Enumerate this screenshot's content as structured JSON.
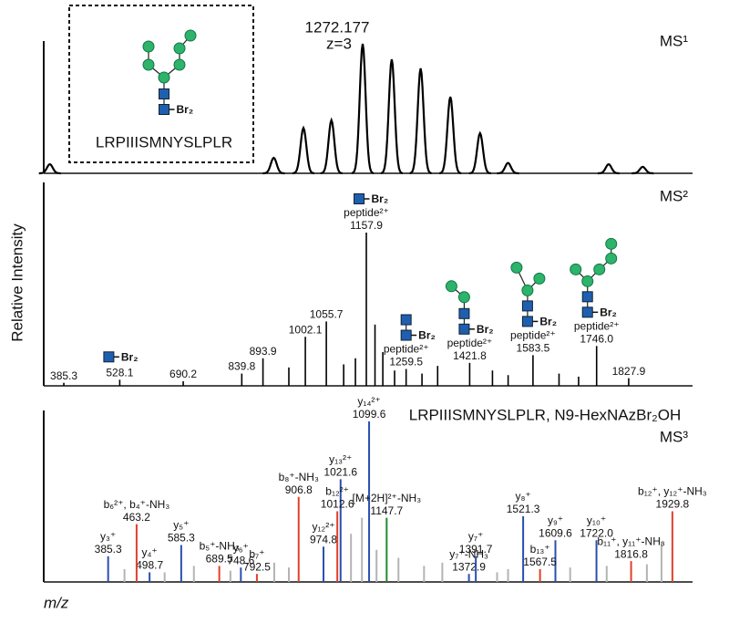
{
  "y_axis_label": "Relative Intensity",
  "x_axis_label": "m/z",
  "chart_data": [
    {
      "type": "profile",
      "title": "MS¹",
      "peak_label": "1272.177",
      "charge_label": "z=3",
      "inset": {
        "modification": "Br₂",
        "peptide": "LRPIIISMNYSLPLR"
      },
      "color": "#000000",
      "x": [
        1268.6,
        1271.16,
        1271.5,
        1271.82,
        1272.177,
        1272.51,
        1272.84,
        1273.18,
        1273.52,
        1273.84,
        1274.99,
        1275.38
      ],
      "values": [
        7,
        12,
        35,
        41,
        100,
        88,
        81,
        59,
        31,
        8,
        7,
        5
      ],
      "xlim": [
        1268.53,
        1275.95
      ],
      "ylim": [
        0,
        100
      ]
    },
    {
      "type": "stick",
      "title": "MS²",
      "color": "#000000",
      "x": [
        385.3,
        528.1,
        690.2,
        839.8,
        893.9,
        960,
        1002.1,
        1055.7,
        1100,
        1130,
        1157.9,
        1180,
        1200,
        1230,
        1259.5,
        1300,
        1340,
        1421.8,
        1480,
        1520,
        1583.5,
        1650,
        1700,
        1746.0,
        1827.9
      ],
      "values": [
        2,
        4,
        3,
        8,
        18,
        12,
        32,
        42,
        14,
        18,
        100,
        40,
        22,
        10,
        11,
        8,
        13,
        15,
        10,
        7,
        20,
        8,
        6,
        26,
        5
      ],
      "x_labels": [
        "385.3",
        "528.1",
        "690.2",
        "839.8",
        "893.9",
        null,
        "1002.1",
        "1055.7",
        null,
        null,
        "1157.9",
        null,
        null,
        null,
        "1259.5",
        null,
        null,
        "1421.8",
        null,
        null,
        "1583.5",
        null,
        null,
        "1746.0",
        "1827.9"
      ],
      "modification_labels": [
        null,
        "Br₂",
        null,
        null,
        null,
        null,
        null,
        null,
        null,
        null,
        "Br₂",
        null,
        null,
        null,
        "Br₂",
        null,
        null,
        "Br₂",
        null,
        null,
        "Br₂",
        null,
        null,
        "Br₂",
        null
      ],
      "ion_labels": [
        null,
        null,
        null,
        null,
        null,
        null,
        null,
        null,
        null,
        null,
        "peptide²⁺",
        null,
        null,
        null,
        "peptide²⁺",
        null,
        null,
        "peptide²⁺",
        null,
        null,
        "peptide²⁺",
        null,
        null,
        "peptide²⁺",
        null
      ],
      "xlim": [
        334,
        1991
      ],
      "ylim": [
        0,
        100
      ]
    },
    {
      "type": "stick",
      "title": "MS³",
      "subtitle": "LRPIIISMNYSLPLR, N9-HexNAzBr₂OH",
      "series": [
        {
          "color": "#b4b4b4",
          "x": [
            430,
            540,
            620,
            720,
            840,
            880,
            1050,
            1080,
            1120,
            1180,
            1250,
            1300,
            1450,
            1480,
            1650,
            1750,
            1860,
            1900
          ],
          "values": [
            8,
            6,
            10,
            7,
            12,
            9,
            30,
            40,
            20,
            15,
            10,
            12,
            6,
            8,
            9,
            10,
            11,
            25
          ]
        },
        {
          "color": "#2b4fb0",
          "x": [
            385.3,
            498.7,
            585.3,
            748.6,
            974.8,
            1021.6,
            1099.6,
            1372.9,
            1391.7,
            1521.3,
            1609.6,
            1722.0
          ],
          "values": [
            16,
            6,
            23,
            9,
            22,
            64,
            100,
            5,
            16,
            41,
            26,
            26
          ],
          "ion_labels": [
            "y₃⁺",
            "y₄⁺",
            "y₅⁺",
            "y₆⁺",
            "y₁₂²⁺",
            "y₁₃²⁺",
            "y₁₄²⁺",
            "y₇⁺-NH₃",
            "y₇⁺",
            "y₈⁺",
            "y₉⁺",
            "y₁₀⁺"
          ],
          "x_labels": [
            "385.3",
            "498.7",
            "585.3",
            "748.6",
            "974.8",
            "1021.6",
            "1099.6",
            "1372.9",
            "1391.7",
            "1521.3",
            "1609.6",
            "1722.0"
          ]
        },
        {
          "color": "#e0402a",
          "x": [
            463.2,
            689.5,
            792.5,
            906.8,
            1012.6,
            1567.5,
            1816.8,
            1929.8
          ],
          "values": [
            36,
            10,
            5,
            53,
            44,
            8,
            13,
            44
          ],
          "ion_labels": [
            "b₆²⁺, b₄⁺-NH₃",
            "b₅⁺-NH₃",
            "b₇⁺",
            "b₈⁺-NH₃",
            "b₁₂²⁺",
            "b₁₃⁺",
            "b₁₁⁺, y₁₁⁺-NH₃",
            "b₁₂⁺, y₁₂⁺-NH₃"
          ],
          "x_labels": [
            "463.2",
            "689.5",
            "792.5",
            "906.8",
            "1012.6",
            "1567.5",
            "1816.8",
            "1929.8"
          ]
        },
        {
          "color": "#1e8c2e",
          "x": [
            1147.7
          ],
          "values": [
            40
          ],
          "ion_labels": [
            "[M+2H]²⁺-NH₃"
          ],
          "x_labels": [
            "1147.7"
          ]
        }
      ],
      "xlim": [
        209,
        1985
      ],
      "ylim": [
        0,
        100
      ]
    }
  ]
}
